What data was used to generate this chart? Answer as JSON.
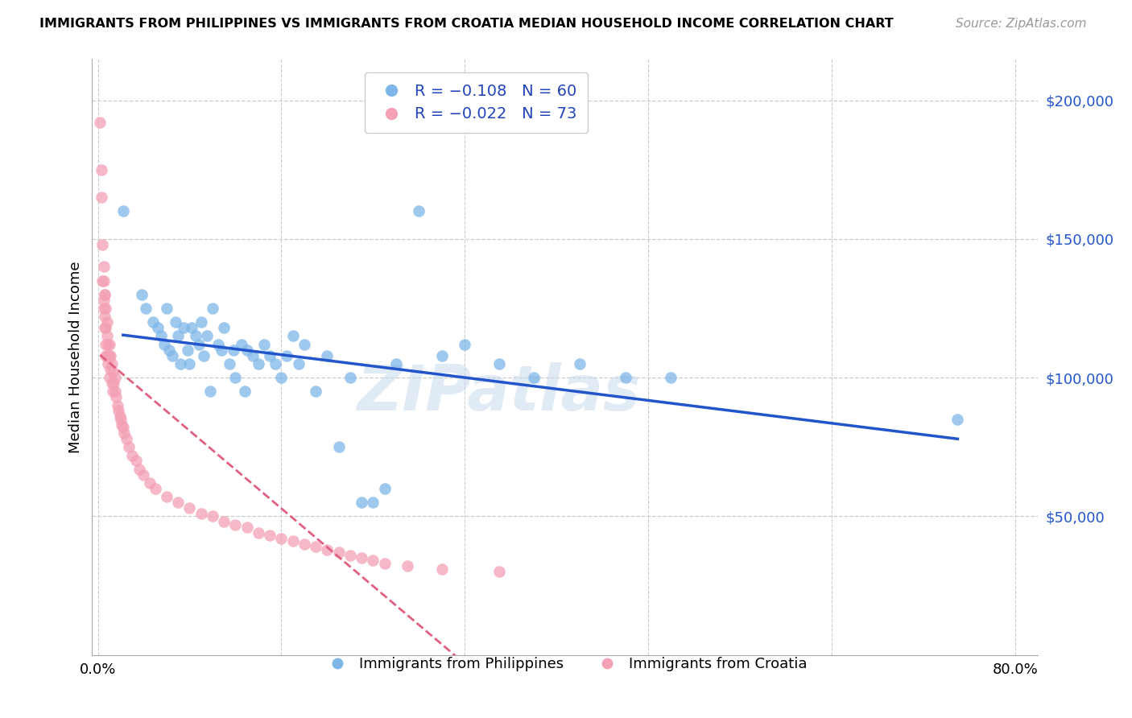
{
  "title": "IMMIGRANTS FROM PHILIPPINES VS IMMIGRANTS FROM CROATIA MEDIAN HOUSEHOLD INCOME CORRELATION CHART",
  "source": "Source: ZipAtlas.com",
  "ylabel": "Median Household Income",
  "ylim": [
    0,
    215000
  ],
  "xlim": [
    -0.005,
    0.82
  ],
  "watermark": "ZIPatlas",
  "philippines_color": "#7eb6e8",
  "croatia_color": "#f4a0b5",
  "philippines_line_color": "#2255cc",
  "croatia_line_color": "#e06080",
  "philippines_scatter_x": [
    0.022,
    0.038,
    0.042,
    0.048,
    0.052,
    0.055,
    0.058,
    0.06,
    0.062,
    0.065,
    0.068,
    0.07,
    0.072,
    0.075,
    0.078,
    0.08,
    0.082,
    0.085,
    0.088,
    0.09,
    0.092,
    0.095,
    0.098,
    0.1,
    0.105,
    0.108,
    0.11,
    0.115,
    0.118,
    0.12,
    0.125,
    0.128,
    0.13,
    0.135,
    0.14,
    0.145,
    0.15,
    0.155,
    0.16,
    0.165,
    0.17,
    0.175,
    0.18,
    0.19,
    0.2,
    0.21,
    0.22,
    0.23,
    0.24,
    0.25,
    0.26,
    0.28,
    0.3,
    0.32,
    0.35,
    0.38,
    0.42,
    0.46,
    0.5,
    0.75
  ],
  "philippines_scatter_y": [
    160000,
    130000,
    125000,
    120000,
    118000,
    115000,
    112000,
    125000,
    110000,
    108000,
    120000,
    115000,
    105000,
    118000,
    110000,
    105000,
    118000,
    115000,
    112000,
    120000,
    108000,
    115000,
    95000,
    125000,
    112000,
    110000,
    118000,
    105000,
    110000,
    100000,
    112000,
    95000,
    110000,
    108000,
    105000,
    112000,
    108000,
    105000,
    100000,
    108000,
    115000,
    105000,
    112000,
    95000,
    108000,
    75000,
    100000,
    55000,
    55000,
    60000,
    105000,
    160000,
    108000,
    112000,
    105000,
    100000,
    105000,
    100000,
    100000,
    85000
  ],
  "croatia_scatter_x": [
    0.002,
    0.003,
    0.003,
    0.004,
    0.004,
    0.005,
    0.005,
    0.005,
    0.006,
    0.006,
    0.006,
    0.007,
    0.007,
    0.007,
    0.008,
    0.008,
    0.008,
    0.009,
    0.009,
    0.01,
    0.01,
    0.01,
    0.011,
    0.011,
    0.012,
    0.012,
    0.013,
    0.013,
    0.014,
    0.015,
    0.015,
    0.016,
    0.017,
    0.018,
    0.019,
    0.02,
    0.021,
    0.022,
    0.023,
    0.025,
    0.027,
    0.03,
    0.033,
    0.036,
    0.04,
    0.045,
    0.05,
    0.06,
    0.07,
    0.08,
    0.09,
    0.1,
    0.11,
    0.12,
    0.13,
    0.14,
    0.15,
    0.16,
    0.17,
    0.18,
    0.19,
    0.2,
    0.21,
    0.22,
    0.23,
    0.24,
    0.25,
    0.27,
    0.3,
    0.35,
    0.005,
    0.006,
    0.007
  ],
  "croatia_scatter_y": [
    192000,
    175000,
    165000,
    148000,
    135000,
    135000,
    128000,
    125000,
    130000,
    122000,
    118000,
    125000,
    118000,
    112000,
    120000,
    115000,
    108000,
    112000,
    105000,
    112000,
    108000,
    100000,
    108000,
    103000,
    105000,
    98000,
    102000,
    95000,
    98000,
    100000,
    95000,
    93000,
    90000,
    88000,
    86000,
    85000,
    83000,
    82000,
    80000,
    78000,
    75000,
    72000,
    70000,
    67000,
    65000,
    62000,
    60000,
    57000,
    55000,
    53000,
    51000,
    50000,
    48000,
    47000,
    46000,
    44000,
    43000,
    42000,
    41000,
    40000,
    39000,
    38000,
    37000,
    36000,
    35000,
    34000,
    33000,
    32000,
    31000,
    30000,
    140000,
    130000,
    108000
  ],
  "yticks": [
    50000,
    100000,
    150000,
    200000
  ],
  "legend_phil_label": "R = −0.108   N = 60",
  "legend_cro_label": "R = −0.022   N = 73",
  "bottom_phil_label": "Immigrants from Philippines",
  "bottom_cro_label": "Immigrants from Croatia"
}
